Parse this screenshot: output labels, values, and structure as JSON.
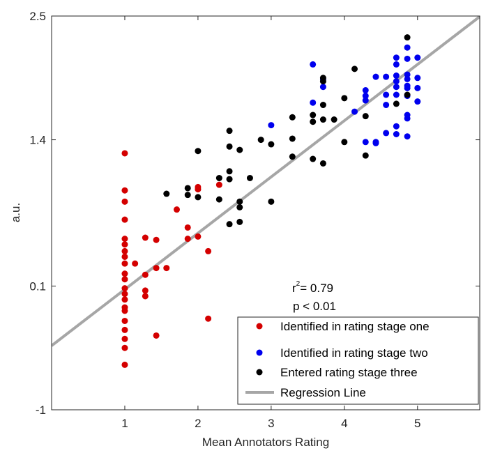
{
  "chart_data": {
    "type": "scatter",
    "xlabel": "Mean Annotators Rating",
    "ylabel": "a.u.",
    "xlim": [
      0,
      5.85
    ],
    "ylim": [
      -1,
      2.5
    ],
    "xticks": [
      1,
      2,
      3,
      4,
      5
    ],
    "xtick_labels": [
      "1",
      "2",
      "3",
      "4",
      "5"
    ],
    "yticks": [
      -1,
      0.1,
      1.4,
      2.5
    ],
    "ytick_labels": [
      "-1",
      "0.1",
      "1.4",
      "2.5"
    ],
    "grid": false,
    "legend_position": "bottom-right",
    "annotations": {
      "r2_prefix": "r",
      "r2_sup": "2",
      "r2_text": "= 0.79",
      "p_text": "p < 0.01"
    },
    "series": [
      {
        "name": "Identified in rating stage one",
        "color": "#d40000",
        "marker": "circle",
        "points": [
          [
            1,
            1.28
          ],
          [
            1,
            0.95
          ],
          [
            1,
            0.85
          ],
          [
            1,
            0.69
          ],
          [
            1,
            0.52
          ],
          [
            1,
            0.47
          ],
          [
            1,
            0.41
          ],
          [
            1,
            0.36
          ],
          [
            1,
            0.3
          ],
          [
            1,
            0.21
          ],
          [
            1,
            0.16
          ],
          [
            1,
            0.08
          ],
          [
            1,
            0.03
          ],
          [
            1,
            -0.02
          ],
          [
            1,
            -0.09
          ],
          [
            1,
            -0.12
          ],
          [
            1,
            -0.21
          ],
          [
            1,
            -0.29
          ],
          [
            1,
            -0.37
          ],
          [
            1,
            -0.45
          ],
          [
            1,
            -0.6
          ],
          [
            1.14,
            0.3
          ],
          [
            1.28,
            0.53
          ],
          [
            1.28,
            0.2
          ],
          [
            1.28,
            0.06
          ],
          [
            1.28,
            0.01
          ],
          [
            1.43,
            0.51
          ],
          [
            1.43,
            0.26
          ],
          [
            1.43,
            -0.34
          ],
          [
            1.57,
            0.26
          ],
          [
            1.71,
            0.78
          ],
          [
            1.86,
            0.62
          ],
          [
            1.86,
            0.52
          ],
          [
            2,
            0.98
          ],
          [
            2,
            0.96
          ],
          [
            2,
            0.54
          ],
          [
            2.14,
            0.41
          ],
          [
            2.14,
            -0.19
          ],
          [
            2.29,
            1.0
          ]
        ]
      },
      {
        "name": "Identified in rating stage two",
        "color": "#0000ee",
        "marker": "circle",
        "points": [
          [
            3,
            1.53
          ],
          [
            3.57,
            2.07
          ],
          [
            3.57,
            1.73
          ],
          [
            3.71,
            1.87
          ],
          [
            3.71,
            1.94
          ],
          [
            4.14,
            1.65
          ],
          [
            4.29,
            1.84
          ],
          [
            4.29,
            1.79
          ],
          [
            4.29,
            1.75
          ],
          [
            4.29,
            1.38
          ],
          [
            4.43,
            1.96
          ],
          [
            4.43,
            1.38
          ],
          [
            4.43,
            1.37
          ],
          [
            4.57,
            1.96
          ],
          [
            4.57,
            1.8
          ],
          [
            4.57,
            1.71
          ],
          [
            4.57,
            1.46
          ],
          [
            4.71,
            2.13
          ],
          [
            4.71,
            2.07
          ],
          [
            4.71,
            1.97
          ],
          [
            4.71,
            1.92
          ],
          [
            4.71,
            1.87
          ],
          [
            4.71,
            1.8
          ],
          [
            4.71,
            1.52
          ],
          [
            4.71,
            1.45
          ],
          [
            4.86,
            2.22
          ],
          [
            4.86,
            2.12
          ],
          [
            4.86,
            1.98
          ],
          [
            4.86,
            1.94
          ],
          [
            4.86,
            1.88
          ],
          [
            4.86,
            1.86
          ],
          [
            4.86,
            1.79
          ],
          [
            4.86,
            1.62
          ],
          [
            4.86,
            1.59
          ],
          [
            4.86,
            1.43
          ],
          [
            5,
            2.13
          ],
          [
            5,
            1.95
          ],
          [
            5,
            1.86
          ],
          [
            5,
            1.74
          ]
        ]
      },
      {
        "name": "Entered rating stage three",
        "color": "#000000",
        "marker": "circle",
        "points": [
          [
            1.57,
            0.92
          ],
          [
            1.86,
            0.97
          ],
          [
            1.86,
            0.91
          ],
          [
            2,
            1.3
          ],
          [
            2,
            0.89
          ],
          [
            2.29,
            1.06
          ],
          [
            2.29,
            0.87
          ],
          [
            2.43,
            1.48
          ],
          [
            2.43,
            1.34
          ],
          [
            2.43,
            1.12
          ],
          [
            2.43,
            1.05
          ],
          [
            2.43,
            0.65
          ],
          [
            2.57,
            1.31
          ],
          [
            2.57,
            0.85
          ],
          [
            2.57,
            0.8
          ],
          [
            2.57,
            0.67
          ],
          [
            2.71,
            1.06
          ],
          [
            2.86,
            1.4
          ],
          [
            3,
            1.36
          ],
          [
            3,
            0.85
          ],
          [
            3.29,
            1.6
          ],
          [
            3.29,
            1.41
          ],
          [
            3.29,
            1.25
          ],
          [
            3.57,
            1.62
          ],
          [
            3.57,
            1.56
          ],
          [
            3.57,
            1.23
          ],
          [
            3.71,
            1.95
          ],
          [
            3.71,
            1.92
          ],
          [
            3.71,
            1.71
          ],
          [
            3.71,
            1.58
          ],
          [
            3.71,
            1.19
          ],
          [
            3.86,
            1.58
          ],
          [
            4,
            1.77
          ],
          [
            4,
            1.38
          ],
          [
            4.14,
            2.03
          ],
          [
            4.29,
            1.61
          ],
          [
            4.29,
            1.26
          ],
          [
            4.71,
            1.72
          ],
          [
            4.86,
            2.31
          ],
          [
            4.86,
            1.8
          ]
        ]
      }
    ],
    "regression_line": {
      "name": "Regression Line",
      "color": "#a6a6a6",
      "slope": 0.5,
      "intercept": -0.43
    }
  }
}
